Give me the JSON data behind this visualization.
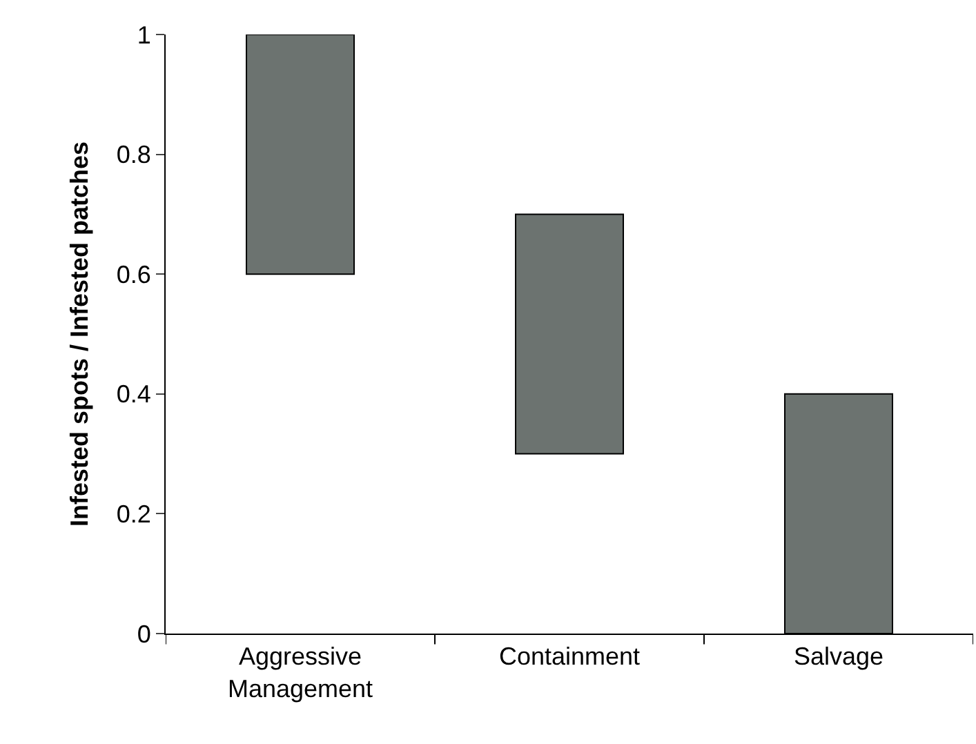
{
  "chart_data": {
    "type": "bar",
    "ylabel": "Infested spots / Infested patches",
    "categories": [
      "Aggressive\nManagement",
      "Containment",
      "Salvage"
    ],
    "values": [
      0.4,
      0.4,
      0.4
    ],
    "base": [
      0.6,
      0.3,
      0
    ],
    "color": "#6c7370",
    "ylim": [
      0,
      1
    ],
    "yticks": [
      0,
      0.2,
      0.4,
      0.6,
      0.8,
      1
    ]
  }
}
